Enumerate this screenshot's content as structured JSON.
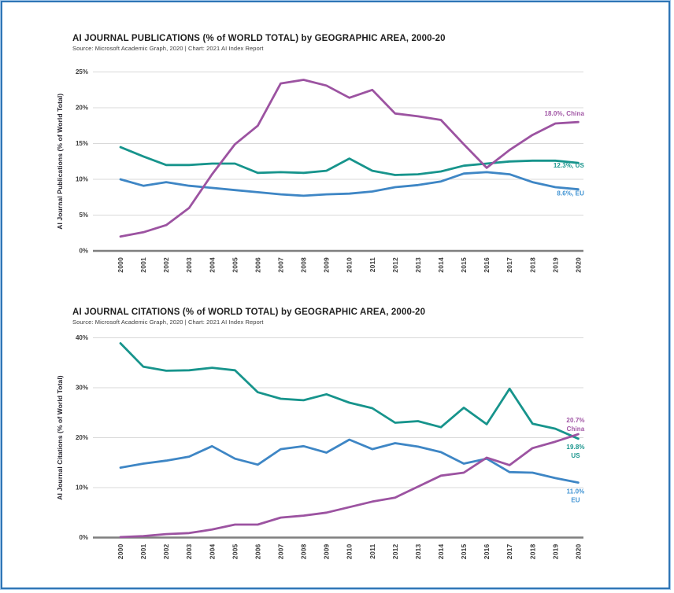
{
  "page": {
    "border_color": "#2e75b6",
    "border_outer_color": "#9fc5e8",
    "background": "#ffffff"
  },
  "chart_data": [
    {
      "type": "line",
      "title": "AI JOURNAL PUBLICATIONS (% of WORLD TOTAL) by GEOGRAPHIC AREA, 2000-20",
      "source": "Source: Microsoft Academic Graph, 2020 | Chart: 2021 AI Index Report",
      "ylabel": "AI Journal Publications (% of World Total)",
      "ylim": [
        0,
        25
      ],
      "yticks": [
        0,
        5,
        10,
        15,
        20,
        25
      ],
      "ytick_suffix": "%",
      "grid": "horizontal",
      "legend_position": "end-of-line labels",
      "categories": [
        2000,
        2001,
        2002,
        2003,
        2004,
        2005,
        2006,
        2007,
        2008,
        2009,
        2010,
        2011,
        2012,
        2013,
        2014,
        2015,
        2016,
        2017,
        2018,
        2019,
        2020
      ],
      "series": [
        {
          "name": "US",
          "color": "#17948c",
          "label_color": "#17948c",
          "end_label": [
            "12.3%, US"
          ],
          "end_anchor": "below",
          "values": [
            14.5,
            13.2,
            12.0,
            12.0,
            12.2,
            12.2,
            10.9,
            11.0,
            10.9,
            11.2,
            12.9,
            11.2,
            10.6,
            10.7,
            11.1,
            11.9,
            12.2,
            12.5,
            12.6,
            12.6,
            12.3
          ]
        },
        {
          "name": "EU",
          "color": "#3e86c5",
          "label_color": "#3f93d3",
          "end_label": [
            "8.6%, EU"
          ],
          "end_anchor": "below",
          "values": [
            10.0,
            9.1,
            9.6,
            9.1,
            8.8,
            8.5,
            8.2,
            7.9,
            7.7,
            7.9,
            8.0,
            8.3,
            8.9,
            9.2,
            9.7,
            10.8,
            11.0,
            10.7,
            9.6,
            8.9,
            8.6
          ]
        },
        {
          "name": "China",
          "color": "#9c53a1",
          "label_color": "#a156a5",
          "end_label": [
            "18.0%, China"
          ],
          "end_anchor": "above",
          "values": [
            2.0,
            2.6,
            3.6,
            6.0,
            10.7,
            14.9,
            17.5,
            23.4,
            23.9,
            23.1,
            21.4,
            22.5,
            19.2,
            18.8,
            18.3,
            14.9,
            11.6,
            14.1,
            16.2,
            17.8,
            18.0
          ]
        }
      ]
    },
    {
      "type": "line",
      "title": "AI JOURNAL CITATIONS (% of WORLD TOTAL) by GEOGRAPHIC AREA, 2000-20",
      "source": "Source: Microsoft Academic Graph, 2020 | Chart: 2021 AI Index Report",
      "ylabel": "AI Journal Citations (% of World Total)",
      "ylim": [
        0,
        40
      ],
      "yticks": [
        0,
        10,
        20,
        30,
        40
      ],
      "ytick_suffix": "%",
      "grid": "horizontal",
      "legend_position": "end-of-line labels",
      "categories": [
        2000,
        2001,
        2002,
        2003,
        2004,
        2005,
        2006,
        2007,
        2008,
        2009,
        2010,
        2011,
        2012,
        2013,
        2014,
        2015,
        2016,
        2017,
        2018,
        2019,
        2020
      ],
      "series": [
        {
          "name": "US",
          "color": "#17948c",
          "label_color": "#17948c",
          "end_label": [
            "19.8%",
            "US"
          ],
          "end_anchor": "below",
          "values": [
            38.9,
            34.2,
            33.4,
            33.5,
            34.0,
            33.5,
            29.1,
            27.8,
            27.5,
            28.7,
            27.0,
            25.9,
            23.0,
            23.3,
            22.1,
            26.0,
            22.7,
            29.8,
            22.8,
            21.8,
            19.8
          ]
        },
        {
          "name": "EU",
          "color": "#3e86c5",
          "label_color": "#3f93d3",
          "end_label": [
            "11.0%",
            "EU"
          ],
          "end_anchor": "below",
          "values": [
            14.0,
            14.8,
            15.4,
            16.2,
            18.3,
            15.8,
            14.6,
            17.7,
            18.3,
            17.0,
            19.6,
            17.7,
            18.9,
            18.2,
            17.1,
            14.8,
            15.8,
            13.1,
            13.0,
            11.9,
            11.0
          ]
        },
        {
          "name": "China",
          "color": "#9c53a1",
          "label_color": "#a156a5",
          "end_label": [
            "20.7%",
            "China"
          ],
          "end_anchor": "above",
          "values": [
            0.1,
            0.3,
            0.7,
            0.9,
            1.6,
            2.6,
            2.6,
            4.0,
            4.4,
            5.0,
            6.1,
            7.2,
            8.0,
            10.2,
            12.4,
            13.0,
            16.0,
            14.5,
            17.9,
            19.2,
            20.7
          ]
        }
      ]
    }
  ]
}
